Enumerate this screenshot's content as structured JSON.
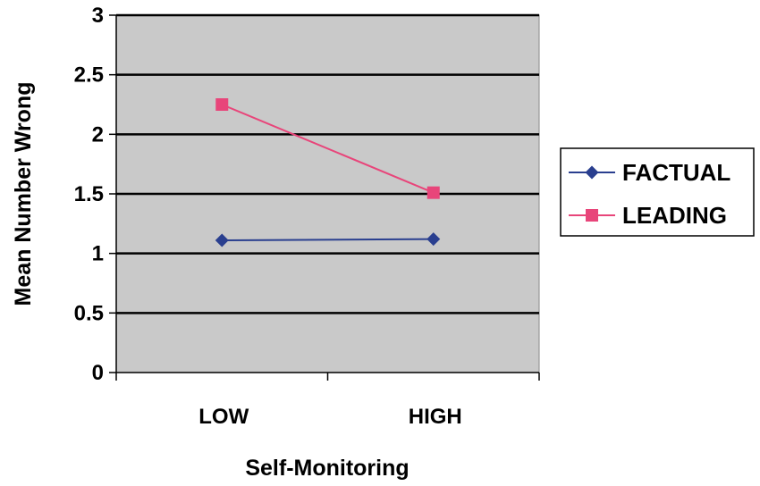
{
  "chart_data": {
    "type": "line",
    "title": "",
    "xlabel": "Self-Monitoring",
    "ylabel": "Mean Number Wrong",
    "categories": [
      "LOW",
      "HIGH"
    ],
    "ylim": [
      0,
      3
    ],
    "yticks": [
      0,
      0.5,
      1,
      1.5,
      2,
      2.5,
      3
    ],
    "ytick_labels": [
      "0",
      "0.5",
      "1",
      "1.5",
      "2",
      "2.5",
      "3"
    ],
    "grid": true,
    "legend_position": "right",
    "series": [
      {
        "name": "FACTUAL",
        "values": [
          1.11,
          1.12
        ],
        "color": "#2a3f8f",
        "marker": "diamond"
      },
      {
        "name": "LEADING",
        "values": [
          2.25,
          1.51
        ],
        "color": "#e8457a",
        "marker": "square"
      }
    ],
    "colors": {
      "plot_background": "#c9c9c9",
      "gridline": "#000000"
    }
  }
}
